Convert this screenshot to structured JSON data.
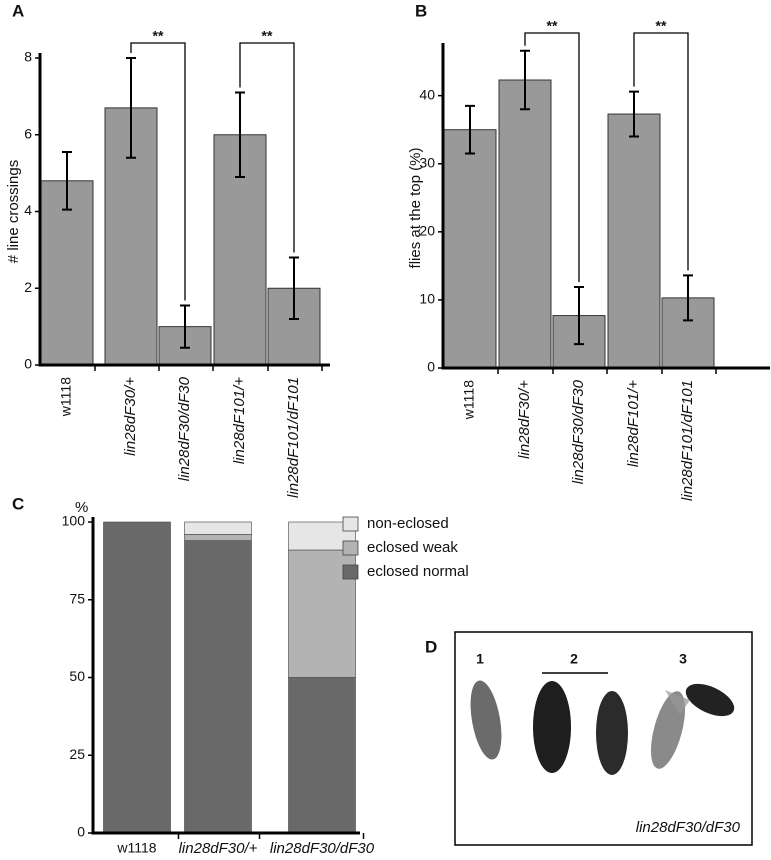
{
  "chart_data": [
    {
      "type": "bar",
      "panel": "A",
      "ylabel": "# line crossings",
      "categories": [
        "w1118",
        "lin28dF30/+",
        "lin28dF30/dF30",
        "lin28dF101/+",
        "lin28dF101/dF101"
      ],
      "values": [
        4.8,
        6.7,
        1.0,
        6.0,
        2.0
      ],
      "errors": [
        0.75,
        1.3,
        0.55,
        1.1,
        0.8
      ],
      "color": "#999999",
      "ylim": [
        0,
        8
      ],
      "yticks": [
        0,
        2,
        4,
        6,
        8
      ],
      "significance": [
        {
          "label": "**",
          "categories": [
            "lin28dF30/+",
            "lin28dF30/dF30"
          ]
        },
        {
          "label": "**",
          "categories": [
            "lin28dF101/+",
            "lin28dF101/dF101"
          ]
        }
      ]
    },
    {
      "type": "bar",
      "panel": "B",
      "ylabel": "flies at the top (%)",
      "categories": [
        "w1118",
        "lin28dF30/+",
        "lin28dF30/dF30",
        "lin28dF101/+",
        "lin28dF101/dF101"
      ],
      "values": [
        35,
        42.3,
        7.7,
        37.3,
        10.3
      ],
      "errors": [
        3.5,
        4.3,
        4.2,
        3.3,
        3.3
      ],
      "color": "#999999",
      "ylim": [
        0,
        47
      ],
      "yticks": [
        0,
        10,
        20,
        30,
        40
      ],
      "significance": [
        {
          "label": "**",
          "categories": [
            "lin28dF30/+",
            "lin28dF30/dF30"
          ]
        },
        {
          "label": "**",
          "categories": [
            "lin28dF101/+",
            "lin28dF101/dF101"
          ]
        }
      ]
    },
    {
      "type": "stacked_bar",
      "panel": "C",
      "ylabel": "%",
      "categories": [
        "w1118",
        "lin28dF30/+",
        "lin28dF30/dF30"
      ],
      "series": [
        {
          "name": "eclosed normal",
          "color": "#696969",
          "values": [
            100,
            94,
            50
          ]
        },
        {
          "name": "eclosed weak",
          "color": "#b3b3b3",
          "values": [
            0,
            2,
            41
          ]
        },
        {
          "name": "non-eclosed",
          "color": "#e6e6e6",
          "values": [
            0,
            4,
            9
          ]
        }
      ],
      "ylim": [
        0,
        100
      ],
      "yticks": [
        0,
        25,
        50,
        75,
        100
      ],
      "legend": "upper right"
    }
  ],
  "photo": {
    "panel": "D",
    "labels": [
      "1",
      "2",
      "3"
    ],
    "caption": "lin28dF30/dF30"
  }
}
